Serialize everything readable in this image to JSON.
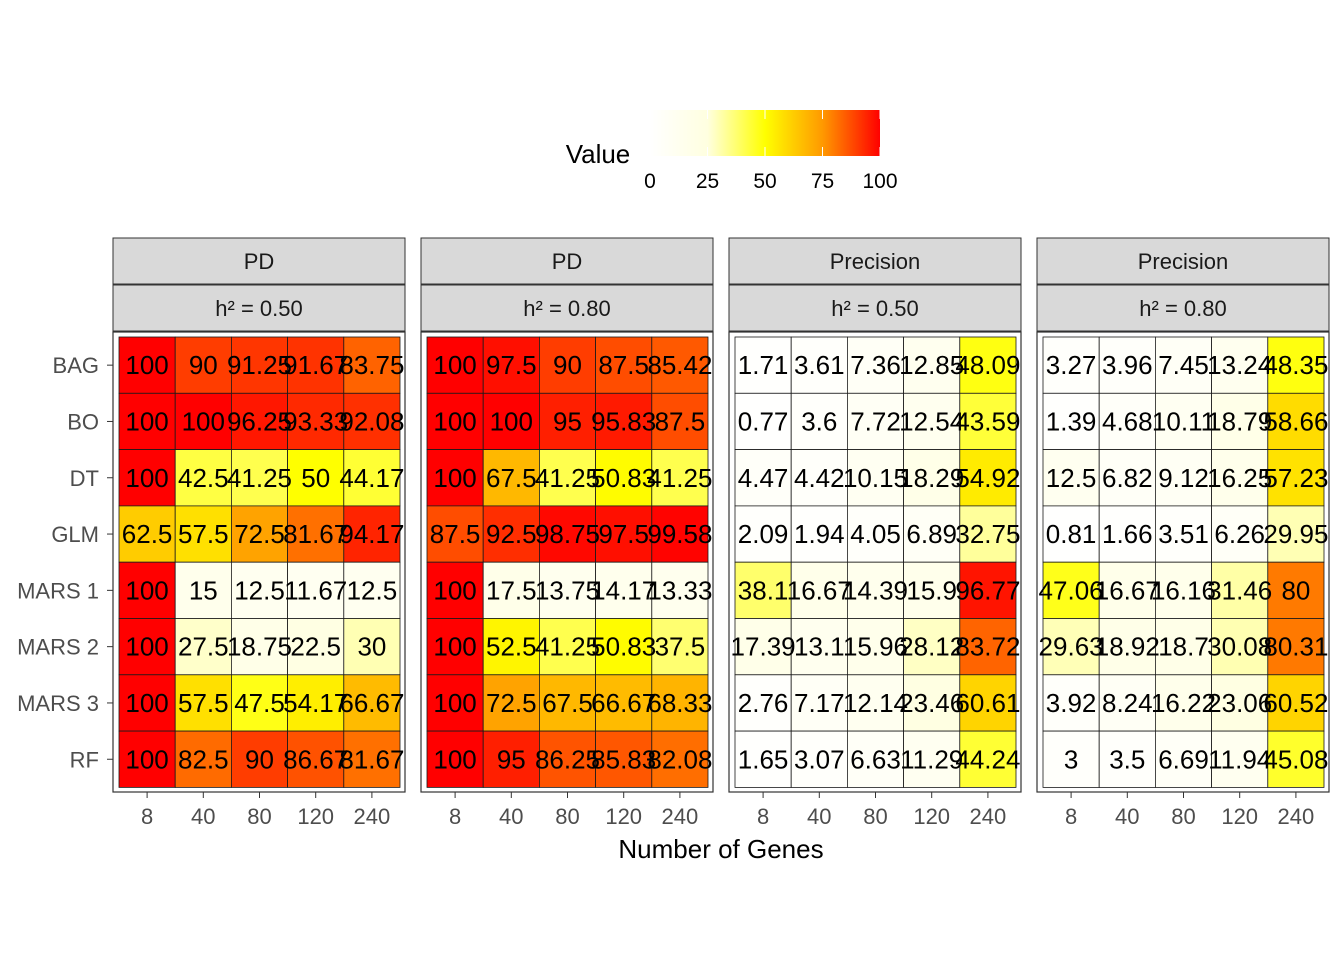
{
  "chart_data": {
    "type": "heatmap",
    "xlabel": "Number of Genes",
    "legend": {
      "title": "Value",
      "ticks": [
        "0",
        "25",
        "50",
        "75",
        "100"
      ],
      "range": [
        0,
        100
      ],
      "position": "top"
    },
    "x_categories": [
      "8",
      "40",
      "80",
      "120",
      "240"
    ],
    "y_categories": [
      "BAG",
      "BO",
      "DT",
      "GLM",
      "MARS 1",
      "MARS 2",
      "MARS 3",
      "RF"
    ],
    "colors": {
      "low": "#ffffff",
      "mid_low": "#ffffe0",
      "mid": "#ffff00",
      "mid_high": "#ff9900",
      "high": "#ff0000"
    },
    "panels": [
      {
        "metric": "PD",
        "heritability": "h² = 0.50",
        "labels": [
          [
            "100",
            "90",
            "91.25",
            "91.67",
            "83.75"
          ],
          [
            "100",
            "100",
            "96.25",
            "93.33",
            "92.08"
          ],
          [
            "100",
            "42.5",
            "41.25",
            "50",
            "44.17"
          ],
          [
            "62.5",
            "57.5",
            "72.5",
            "81.67",
            "94.17"
          ],
          [
            "100",
            "15",
            "12.5",
            "11.67",
            "12.5"
          ],
          [
            "100",
            "27.5",
            "18.75",
            "22.5",
            "30"
          ],
          [
            "100",
            "57.5",
            "47.5",
            "54.17",
            "66.67"
          ],
          [
            "100",
            "82.5",
            "90",
            "86.67",
            "81.67"
          ]
        ]
      },
      {
        "metric": "PD",
        "heritability": "h² = 0.80",
        "labels": [
          [
            "100",
            "97.5",
            "90",
            "87.5",
            "85.42"
          ],
          [
            "100",
            "100",
            "95",
            "95.83",
            "87.5"
          ],
          [
            "100",
            "67.5",
            "41.25",
            "50.83",
            "41.25"
          ],
          [
            "87.5",
            "92.5",
            "98.75",
            "97.5",
            "99.58"
          ],
          [
            "100",
            "17.5",
            "13.75",
            "14.17",
            "13.33"
          ],
          [
            "100",
            "52.5",
            "41.25",
            "50.83",
            "37.5"
          ],
          [
            "100",
            "72.5",
            "67.5",
            "66.67",
            "68.33"
          ],
          [
            "100",
            "95",
            "86.25",
            "85.83",
            "82.08"
          ]
        ]
      },
      {
        "metric": "Precision",
        "heritability": "h² = 0.50",
        "labels": [
          [
            "1.71",
            "3.61",
            "7.36",
            "12.85",
            "48.09"
          ],
          [
            "0.77",
            "3.6",
            "7.72",
            "12.54",
            "43.59"
          ],
          [
            "4.47",
            "4.42",
            "10.15",
            "18.29",
            "54.92"
          ],
          [
            "2.09",
            "1.94",
            "4.05",
            "6.89",
            "32.75"
          ],
          [
            "38.1",
            "16.67",
            "14.39",
            "15.9",
            "96.77"
          ],
          [
            "17.39",
            "13.1",
            "15.96",
            "28.12",
            "83.72"
          ],
          [
            "2.76",
            "7.17",
            "12.14",
            "23.46",
            "60.61"
          ],
          [
            "1.65",
            "3.07",
            "6.63",
            "11.29",
            "44.24"
          ]
        ]
      },
      {
        "metric": "Precision",
        "heritability": "h² = 0.80",
        "labels": [
          [
            "3.27",
            "3.96",
            "7.45",
            "13.24",
            "48.35"
          ],
          [
            "1.39",
            "4.68",
            "10.11",
            "18.79",
            "58.66"
          ],
          [
            "12.5",
            "6.82",
            "9.12",
            "16.25",
            "57.23"
          ],
          [
            "0.81",
            "1.66",
            "3.51",
            "6.26",
            "29.95"
          ],
          [
            "47.06",
            "16.67",
            "16.16",
            "31.46",
            "80"
          ],
          [
            "29.63",
            "18.92",
            "18.7",
            "30.08",
            "80.31"
          ],
          [
            "3.92",
            "8.24",
            "16.22",
            "23.06",
            "60.52"
          ],
          [
            "3",
            "3.5",
            "6.69",
            "11.94",
            "45.08"
          ]
        ]
      }
    ]
  }
}
